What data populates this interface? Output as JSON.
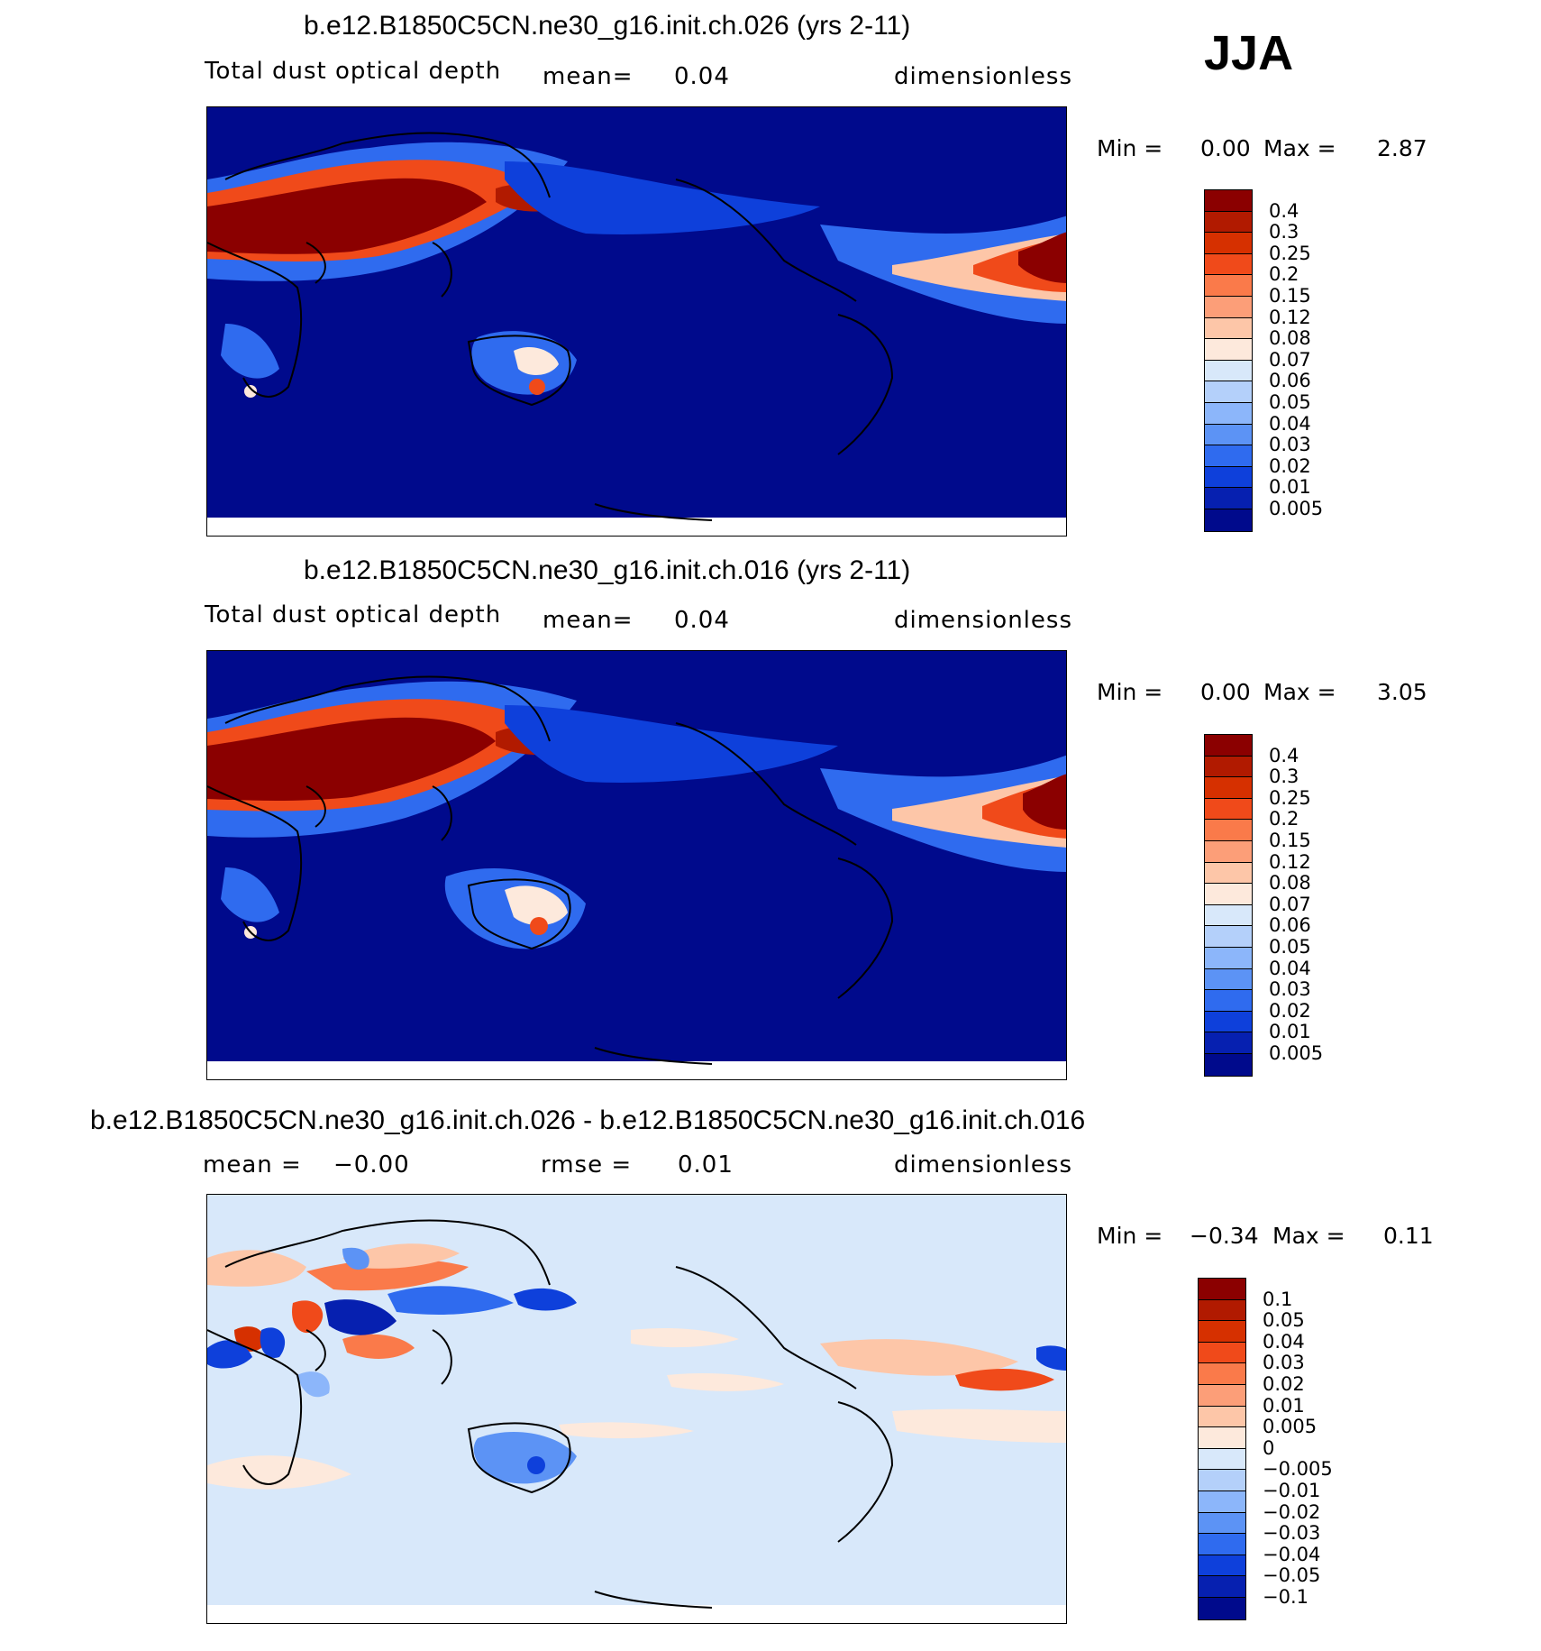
{
  "season": "JJA",
  "panels": [
    {
      "title": "b.e12.B1850C5CN.ne30_g16.init.ch.026 (yrs 2-11)",
      "left_label": "Total dust optical depth",
      "center_label": "mean=",
      "center_value": "0.04",
      "units": "dimensionless",
      "min_label": "Min =",
      "min_value": "0.00",
      "max_label": "Max =",
      "max_value": "2.87"
    },
    {
      "title": "b.e12.B1850C5CN.ne30_g16.init.ch.016 (yrs 2-11)",
      "left_label": "Total dust optical depth",
      "center_label": "mean=",
      "center_value": "0.04",
      "units": "dimensionless",
      "min_label": "Min =",
      "min_value": "0.00",
      "max_label": "Max =",
      "max_value": "3.05"
    },
    {
      "title": "b.e12.B1850C5CN.ne30_g16.init.ch.026 - b.e12.B1850C5CN.ne30_g16.init.ch.016",
      "left_label": "mean =",
      "left_value": "−0.00",
      "center_label": "rmse =",
      "center_value": "0.01",
      "units": "dimensionless",
      "min_label": "Min =",
      "min_value": "−0.34",
      "max_label": "Max =",
      "max_value": "0.11"
    }
  ],
  "colorbars": {
    "field": {
      "labels": [
        "0.4",
        "0.3",
        "0.25",
        "0.2",
        "0.15",
        "0.12",
        "0.08",
        "0.07",
        "0.06",
        "0.05",
        "0.04",
        "0.03",
        "0.02",
        "0.01",
        "0.005"
      ],
      "colors": [
        "#8b0000",
        "#b11a00",
        "#d63000",
        "#f04a1a",
        "#fa7a4a",
        "#fc9e78",
        "#fdc6a8",
        "#fde9dc",
        "#d8e8fa",
        "#b4d0fa",
        "#8cb6fa",
        "#5c93f5",
        "#2f6bef",
        "#0e40db",
        "#0620b0",
        "#000a8c"
      ]
    },
    "diff": {
      "labels": [
        "0.1",
        "0.05",
        "0.04",
        "0.03",
        "0.02",
        "0.01",
        "0.005",
        "0",
        "−0.005",
        "−0.01",
        "−0.02",
        "−0.03",
        "−0.04",
        "−0.05",
        "−0.1"
      ],
      "colors": [
        "#8b0000",
        "#b11a00",
        "#d63000",
        "#f04a1a",
        "#fa7a4a",
        "#fc9e78",
        "#fdc6a8",
        "#fde9dc",
        "#d8e8fa",
        "#b4d0fa",
        "#8cb6fa",
        "#5c93f5",
        "#2f6bef",
        "#0e40db",
        "#0620b0",
        "#000a8c"
      ]
    }
  }
}
